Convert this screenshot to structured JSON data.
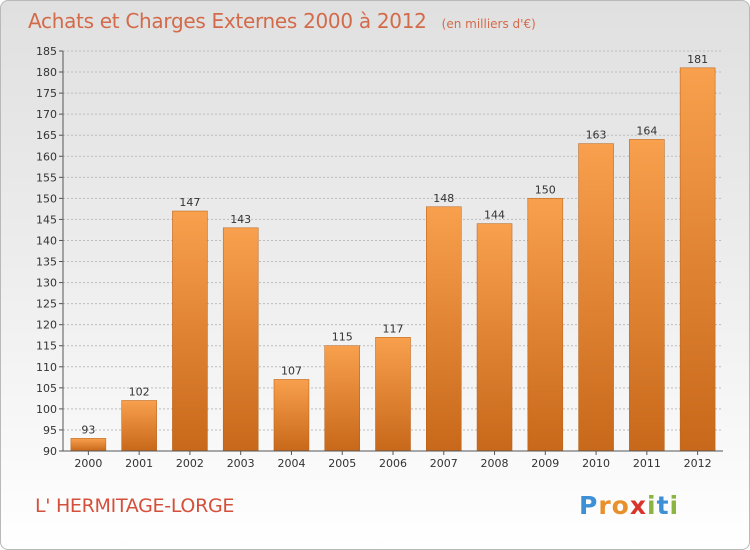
{
  "header": {
    "title": "Achats et Charges Externes 2000 à 2012",
    "subtitle": "(en milliers d'€)"
  },
  "footer": {
    "town": "L' HERMITAGE-LORGE",
    "logo_letters": [
      "P",
      "r",
      "o",
      "x",
      "i",
      "t",
      "i"
    ],
    "logo_colors": [
      "#3d8fd6",
      "#e8902c",
      "#e8902c",
      "#d9342c",
      "#8bb540",
      "#3d8fd6",
      "#8bb540"
    ]
  },
  "colors": {
    "bar_light": "#f8a04d",
    "bar_dark": "#c8681a",
    "axis": "#555555",
    "grid": "#bdbdbd"
  },
  "chart_data": {
    "type": "bar",
    "categories": [
      "2000",
      "2001",
      "2002",
      "2003",
      "2004",
      "2005",
      "2006",
      "2007",
      "2008",
      "2009",
      "2010",
      "2011",
      "2012"
    ],
    "values": [
      93,
      102,
      147,
      143,
      107,
      115,
      117,
      148,
      144,
      150,
      163,
      164,
      181
    ],
    "ylim": [
      90,
      185
    ],
    "ytick_step": 5,
    "yticks": [
      "90",
      "95",
      "100",
      "105",
      "110",
      "115",
      "120",
      "125",
      "130",
      "135",
      "140",
      "145",
      "150",
      "155",
      "160",
      "165",
      "170",
      "175",
      "180",
      "185"
    ],
    "grid": true,
    "data_labels": true
  }
}
